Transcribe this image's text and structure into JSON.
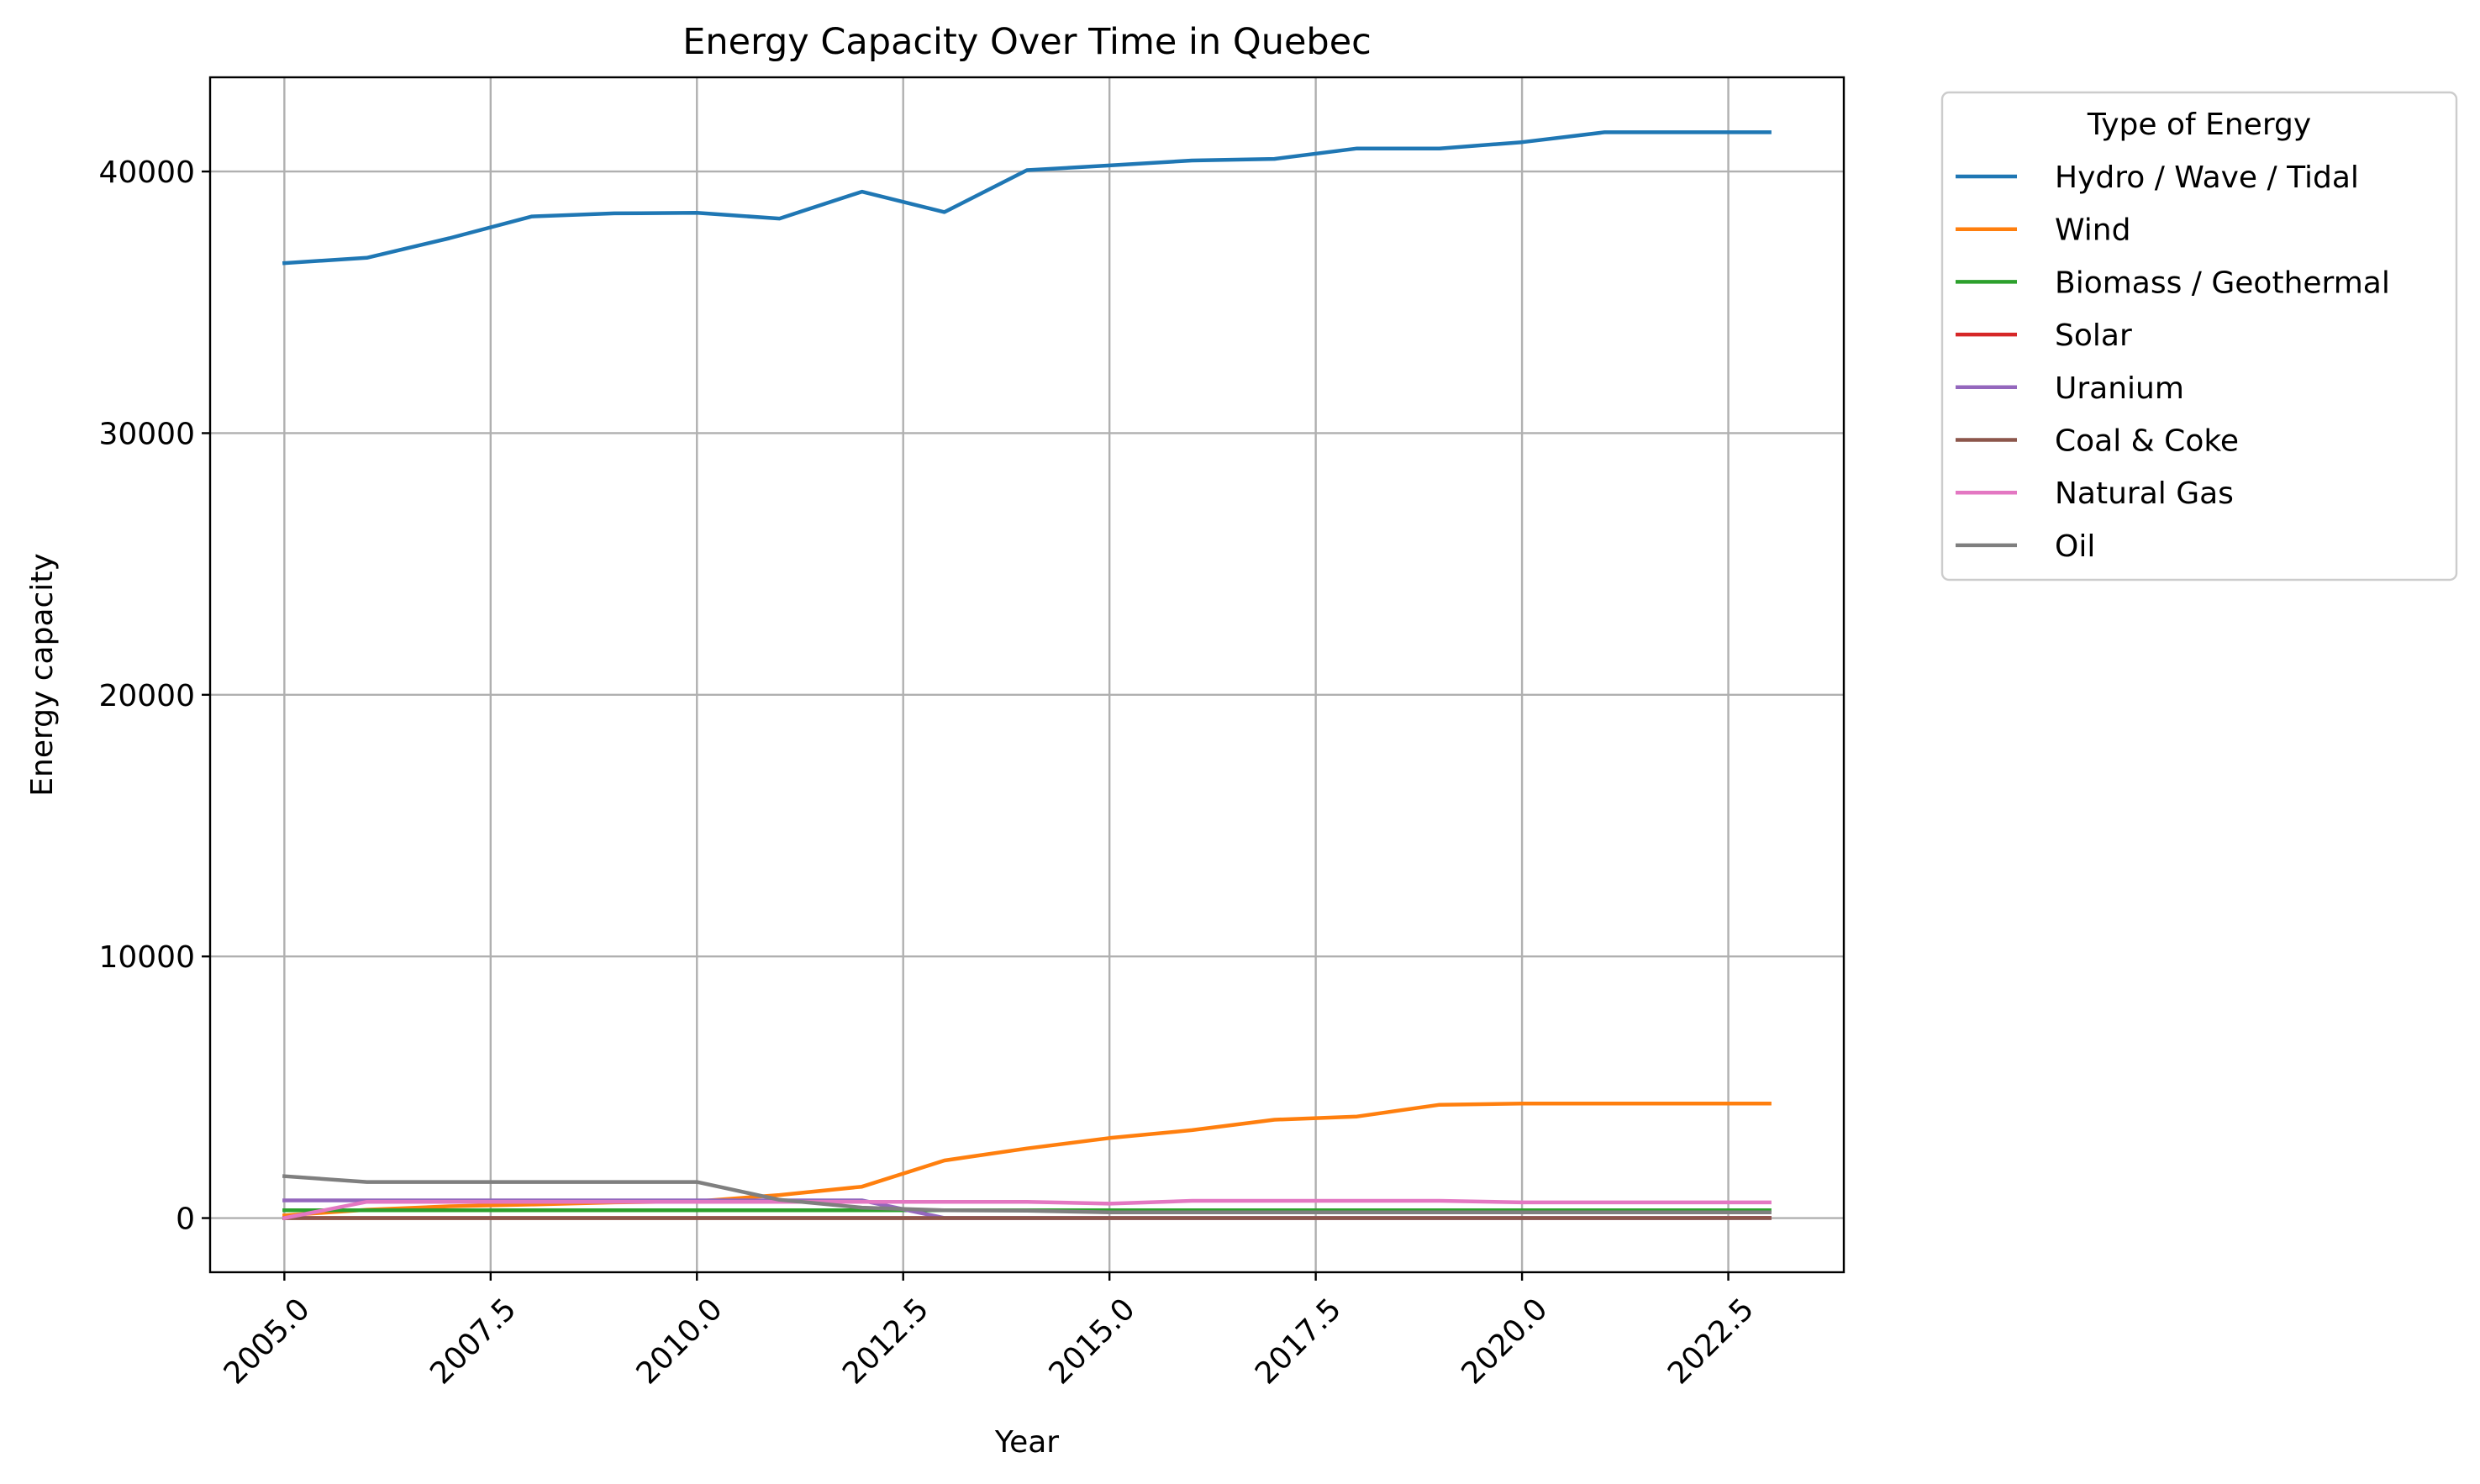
{
  "chart_data": {
    "type": "line",
    "title": "Energy Capacity Over Time in Quebec",
    "xlabel": "Year",
    "ylabel": "Energy capacity",
    "xlim": [
      2004.1,
      2023.9
    ],
    "ylim": [
      -2070,
      43600
    ],
    "xticks": [
      2005.0,
      2007.5,
      2010.0,
      2012.5,
      2015.0,
      2017.5,
      2020.0,
      2022.5
    ],
    "xtick_labels": [
      "2005.0",
      "2007.5",
      "2010.0",
      "2012.5",
      "2015.0",
      "2017.5",
      "2020.0",
      "2022.5"
    ],
    "yticks": [
      0,
      10000,
      20000,
      30000,
      40000
    ],
    "ytick_labels": [
      "0",
      "10000",
      "20000",
      "30000",
      "40000"
    ],
    "grid": true,
    "legend_title": "Type of Energy",
    "legend_position": "outside-top-right",
    "x": [
      2005,
      2006,
      2007,
      2008,
      2009,
      2010,
      2011,
      2012,
      2013,
      2014,
      2015,
      2016,
      2017,
      2018,
      2019,
      2020,
      2021,
      2022,
      2023
    ],
    "series": [
      {
        "name": "Hydro / Wave / Tidal",
        "color": "#1f77b4",
        "values": [
          36500,
          36700,
          37450,
          38280,
          38400,
          38420,
          38200,
          39230,
          38450,
          40050,
          40230,
          40420,
          40480,
          40880,
          40880,
          41120,
          41500,
          41500,
          41500
        ]
      },
      {
        "name": "Wind",
        "color": "#ff7f0e",
        "values": [
          100,
          320,
          450,
          520,
          600,
          640,
          880,
          1200,
          2200,
          2660,
          3060,
          3360,
          3760,
          3880,
          4330,
          4380,
          4380,
          4380,
          4380
        ]
      },
      {
        "name": "Biomass / Geothermal",
        "color": "#2ca02c",
        "values": [
          300,
          300,
          300,
          300,
          300,
          300,
          300,
          300,
          300,
          300,
          300,
          300,
          300,
          300,
          300,
          300,
          300,
          300,
          300
        ]
      },
      {
        "name": "Solar",
        "color": "#d62728",
        "values": [
          0,
          0,
          0,
          0,
          0,
          0,
          0,
          0,
          0,
          0,
          0,
          0,
          0,
          0,
          0,
          0,
          0,
          0,
          10
        ]
      },
      {
        "name": "Uranium",
        "color": "#9467bd",
        "values": [
          675,
          675,
          675,
          675,
          675,
          675,
          675,
          675,
          0,
          0,
          0,
          0,
          0,
          0,
          0,
          0,
          0,
          0,
          0
        ]
      },
      {
        "name": "Coal & Coke",
        "color": "#8c564b",
        "values": [
          0,
          0,
          0,
          0,
          0,
          0,
          0,
          0,
          0,
          0,
          0,
          0,
          0,
          0,
          0,
          0,
          0,
          0,
          0
        ]
      },
      {
        "name": "Natural Gas",
        "color": "#e377c2",
        "values": [
          0,
          620,
          620,
          620,
          620,
          620,
          620,
          620,
          620,
          620,
          550,
          660,
          660,
          660,
          660,
          600,
          600,
          600,
          600
        ]
      },
      {
        "name": "Oil",
        "color": "#7f7f7f",
        "values": [
          1600,
          1380,
          1380,
          1380,
          1380,
          1380,
          700,
          400,
          300,
          280,
          220,
          220,
          220,
          220,
          220,
          220,
          220,
          220,
          220
        ]
      }
    ]
  }
}
